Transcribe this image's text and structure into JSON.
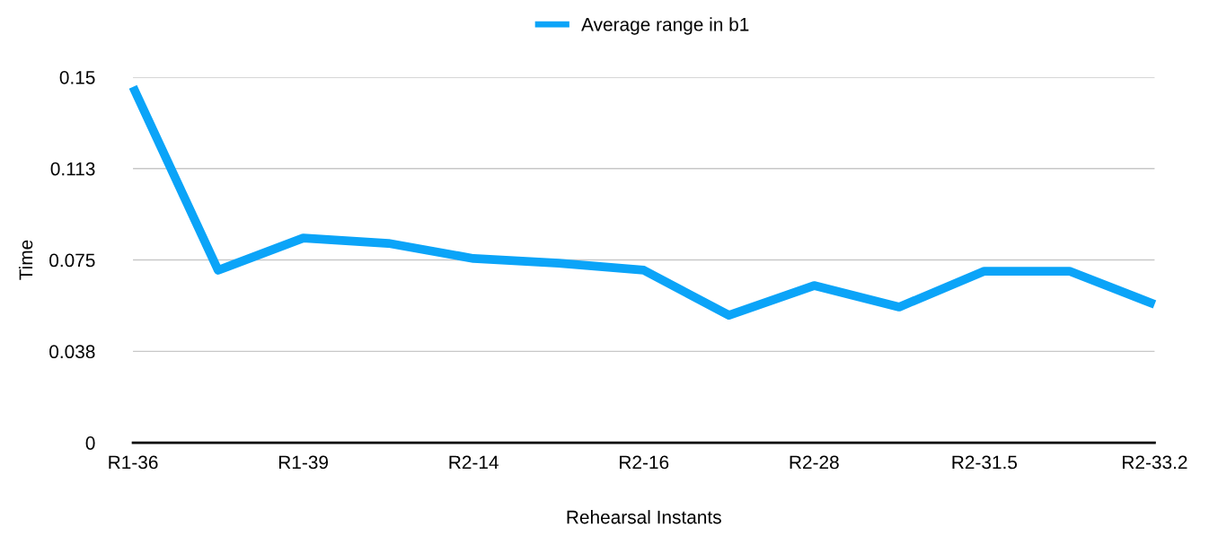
{
  "chart_data": {
    "type": "line",
    "xlabel": "Rehearsal Instants",
    "ylabel": "Time",
    "categories": [
      "R1-36",
      null,
      "R1-39",
      null,
      "R2-14",
      null,
      "R2-16",
      null,
      "R2-28",
      null,
      "R2-31.5",
      null,
      "R2-33.2"
    ],
    "series": [
      {
        "name": "Average range in b1",
        "color": "#0ba4f8",
        "values": [
          0.146,
          0.0708,
          0.084,
          0.0818,
          0.0756,
          0.0737,
          0.0708,
          0.0523,
          0.0645,
          0.0557,
          0.0704,
          0.0704,
          0.0568
        ]
      }
    ],
    "ylim": [
      0,
      0.15
    ],
    "yticks": [
      0,
      {
        "value": 0.0375,
        "label": "0.038"
      },
      0.075,
      {
        "value": 0.1125,
        "label": "0.113"
      },
      0.15
    ],
    "grid": "y",
    "legend": "top",
    "marker": "none",
    "line_style": "solid"
  }
}
